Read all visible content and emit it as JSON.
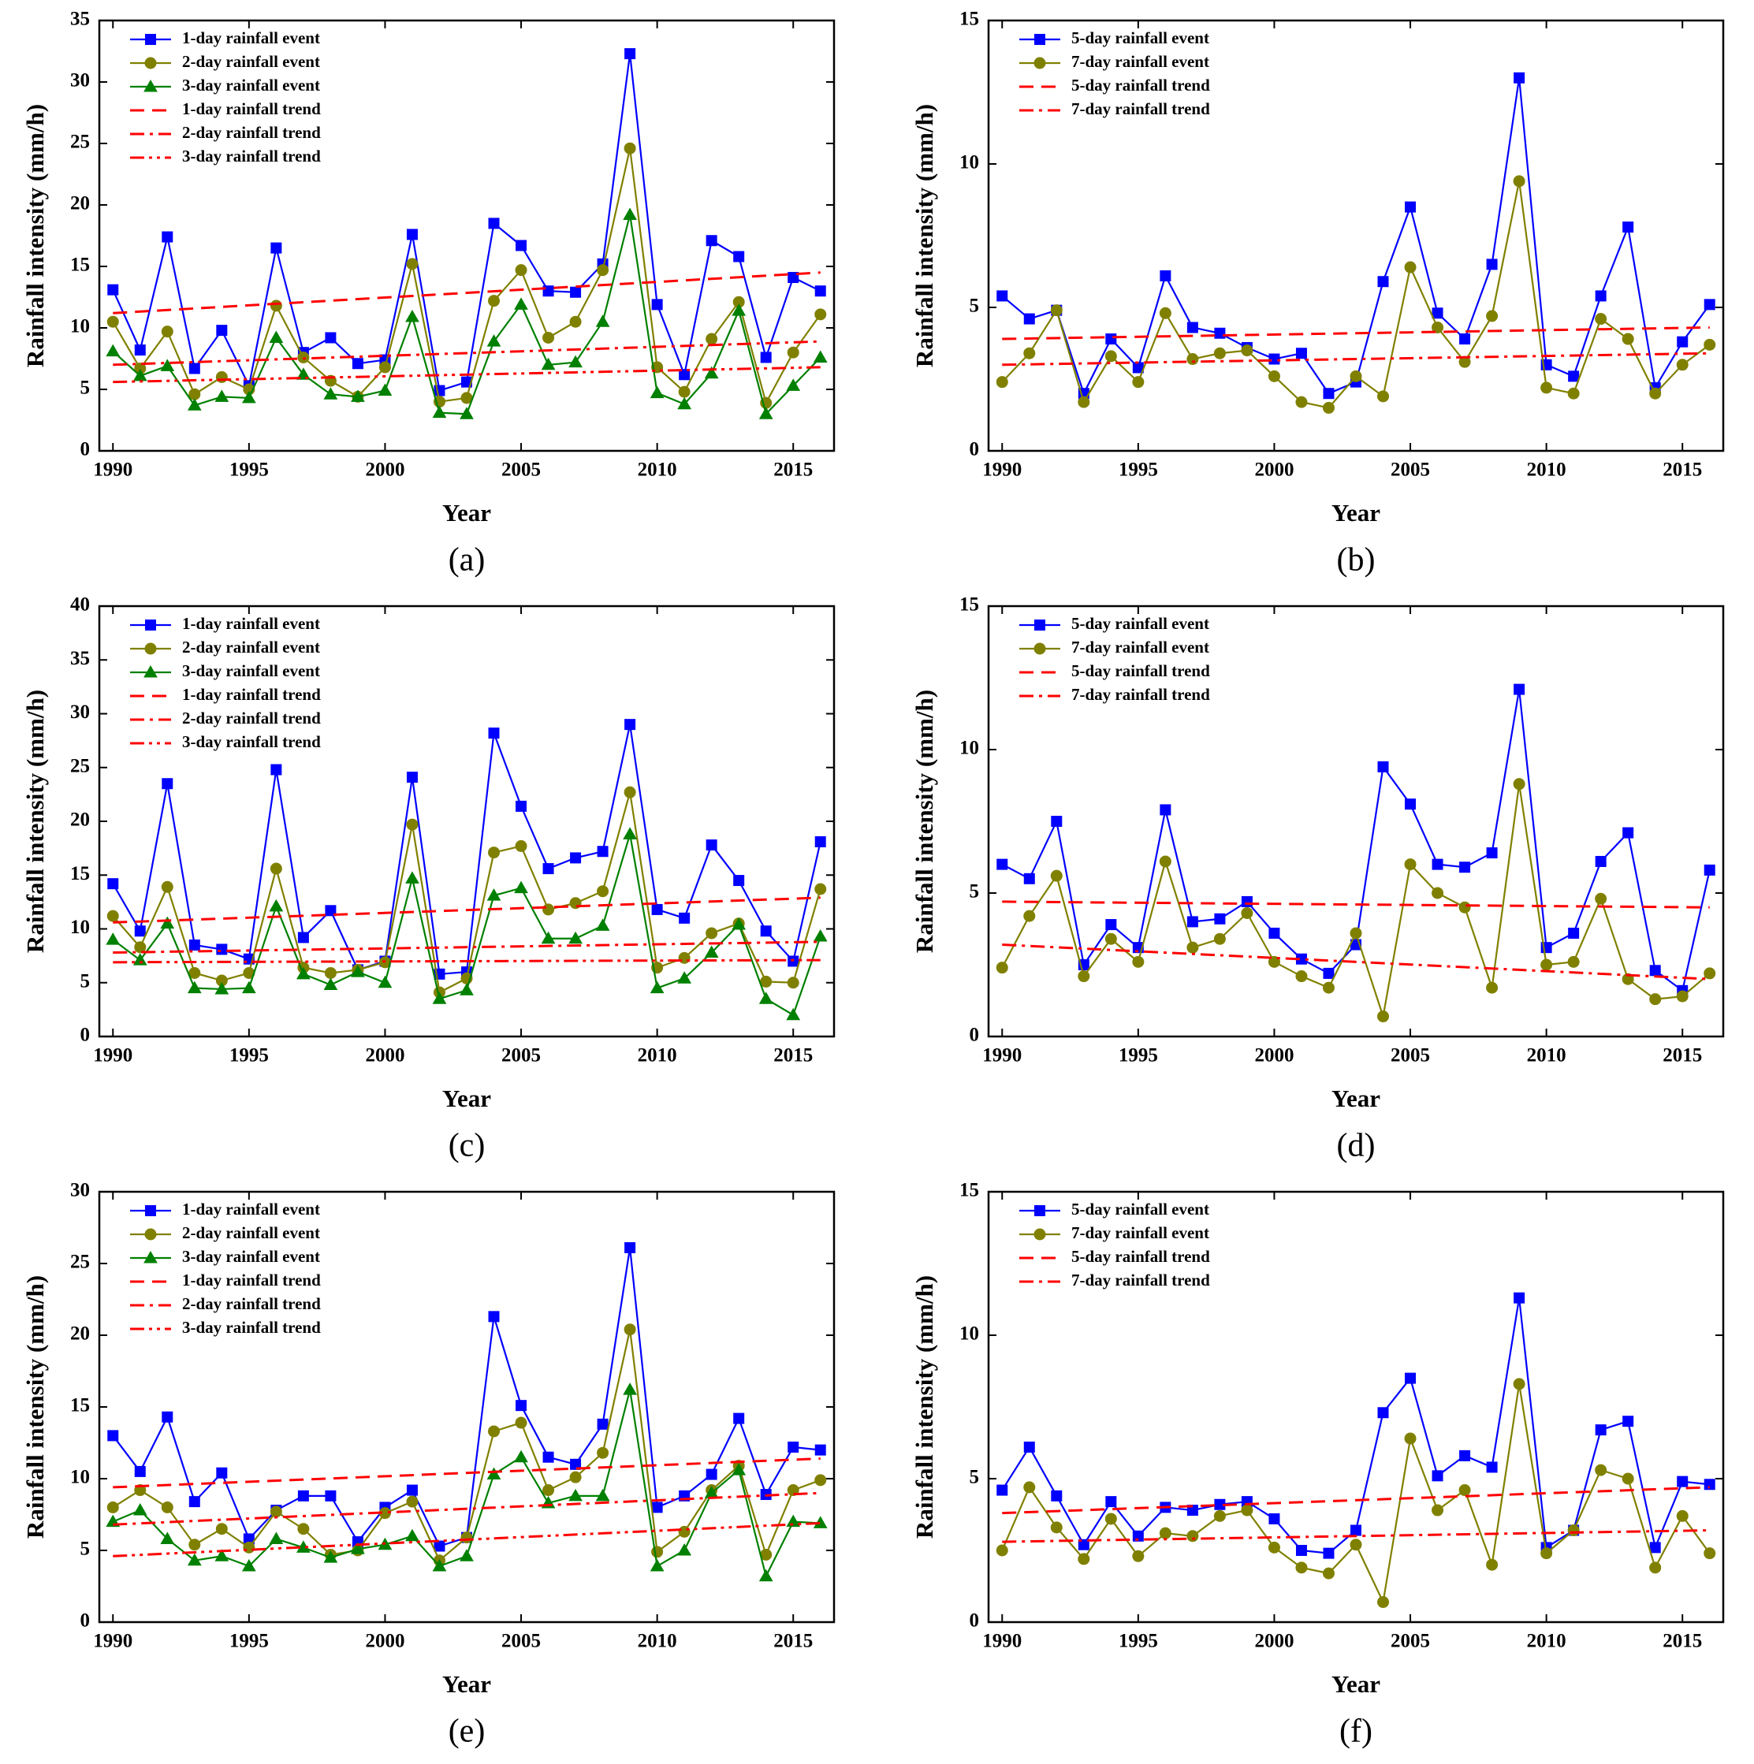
{
  "chart_data": [
    {
      "type": "line",
      "label": "(a)",
      "xlabel": "Year",
      "ylabel": "Rainfall intensity (mm/h)",
      "x": [
        1990,
        1991,
        1992,
        1993,
        1994,
        1995,
        1996,
        1997,
        1998,
        1999,
        2000,
        2001,
        2002,
        2003,
        2004,
        2005,
        2006,
        2007,
        2008,
        2009,
        2010,
        2011,
        2012,
        2013,
        2014,
        2015,
        2016
      ],
      "xlim": [
        1989.5,
        2016.5
      ],
      "xticks": [
        1990,
        1995,
        2000,
        2005,
        2010,
        2015
      ],
      "ylim": [
        0,
        35
      ],
      "yticks": [
        0,
        5,
        10,
        15,
        20,
        25,
        30,
        35
      ],
      "series": [
        {
          "name": "1-day rainfall event",
          "color": "#0000ff",
          "marker": "square",
          "values": [
            13.1,
            8.2,
            17.4,
            6.7,
            9.8,
            5.3,
            16.5,
            8.0,
            9.2,
            7.1,
            7.4,
            17.6,
            4.9,
            5.6,
            18.5,
            16.7,
            13.0,
            12.9,
            15.2,
            32.3,
            11.9,
            6.2,
            17.1,
            15.8,
            7.6,
            14.1,
            13.0
          ]
        },
        {
          "name": "2-day rainfall event",
          "color": "#808000",
          "marker": "circle",
          "values": [
            10.5,
            6.7,
            9.7,
            4.6,
            6.0,
            5.0,
            11.8,
            7.6,
            5.7,
            4.4,
            6.8,
            15.2,
            4.0,
            4.3,
            12.2,
            14.7,
            9.2,
            10.5,
            14.7,
            24.6,
            6.8,
            4.8,
            9.1,
            12.1,
            3.9,
            8.0,
            11.1
          ]
        },
        {
          "name": "3-day rainfall event",
          "color": "#008000",
          "marker": "triangle",
          "values": [
            8.1,
            6.1,
            6.9,
            3.7,
            4.4,
            4.3,
            9.2,
            6.2,
            4.6,
            4.4,
            4.9,
            10.9,
            3.1,
            3.0,
            8.9,
            11.9,
            7.0,
            7.2,
            10.5,
            19.2,
            4.7,
            3.8,
            6.3,
            11.4,
            3.0,
            5.3,
            7.6
          ]
        },
        {
          "name": "1-day rainfall trend",
          "color": "#ff0000",
          "dash": "dash",
          "x": [
            1990,
            2016
          ],
          "values": [
            11.2,
            14.5
          ]
        },
        {
          "name": "2-day rainfall trend",
          "color": "#ff0000",
          "dash": "dashdot",
          "x": [
            1990,
            2016
          ],
          "values": [
            7.0,
            8.9
          ]
        },
        {
          "name": "3-day rainfall trend",
          "color": "#ff0000",
          "dash": "dashdotdot",
          "x": [
            1990,
            2016
          ],
          "values": [
            5.6,
            6.8
          ]
        }
      ]
    },
    {
      "type": "line",
      "label": "(b)",
      "xlabel": "Year",
      "ylabel": "Rainfall intensity (mm/h)",
      "x": [
        1990,
        1991,
        1992,
        1993,
        1994,
        1995,
        1996,
        1997,
        1998,
        1999,
        2000,
        2001,
        2002,
        2003,
        2004,
        2005,
        2006,
        2007,
        2008,
        2009,
        2010,
        2011,
        2012,
        2013,
        2014,
        2015,
        2016
      ],
      "xlim": [
        1989.5,
        2016.5
      ],
      "xticks": [
        1990,
        1995,
        2000,
        2005,
        2010,
        2015
      ],
      "ylim": [
        0,
        15
      ],
      "yticks": [
        0,
        5,
        10,
        15
      ],
      "series": [
        {
          "name": "5-day rainfall event",
          "color": "#0000ff",
          "marker": "square",
          "values": [
            5.4,
            4.6,
            4.9,
            2.0,
            3.9,
            2.9,
            6.1,
            4.3,
            4.1,
            3.6,
            3.2,
            3.4,
            2.0,
            2.4,
            5.9,
            8.5,
            4.8,
            3.9,
            6.5,
            13.0,
            3.0,
            2.6,
            5.4,
            7.8,
            2.2,
            3.8,
            5.1
          ]
        },
        {
          "name": "7-day rainfall event",
          "color": "#808000",
          "marker": "circle",
          "values": [
            2.4,
            3.4,
            4.9,
            1.7,
            3.3,
            2.4,
            4.8,
            3.2,
            3.4,
            3.5,
            2.6,
            1.7,
            1.5,
            2.6,
            1.9,
            6.4,
            4.3,
            3.1,
            4.7,
            9.4,
            2.2,
            2.0,
            4.6,
            3.9,
            2.0,
            3.0,
            3.7
          ]
        },
        {
          "name": "5-day rainfall trend",
          "color": "#ff0000",
          "dash": "dash",
          "x": [
            1990,
            2016
          ],
          "values": [
            3.9,
            4.3
          ]
        },
        {
          "name": "7-day rainfall trend",
          "color": "#ff0000",
          "dash": "dashdot",
          "x": [
            1990,
            2016
          ],
          "values": [
            3.0,
            3.4
          ]
        }
      ]
    },
    {
      "type": "line",
      "label": "(c)",
      "xlabel": "Year",
      "ylabel": "Rainfall intensity (mm/h)",
      "x": [
        1990,
        1991,
        1992,
        1993,
        1994,
        1995,
        1996,
        1997,
        1998,
        1999,
        2000,
        2001,
        2002,
        2003,
        2004,
        2005,
        2006,
        2007,
        2008,
        2009,
        2010,
        2011,
        2012,
        2013,
        2014,
        2015,
        2016
      ],
      "xlim": [
        1989.5,
        2016.5
      ],
      "xticks": [
        1990,
        1995,
        2000,
        2005,
        2010,
        2015
      ],
      "ylim": [
        0,
        40
      ],
      "yticks": [
        0,
        5,
        10,
        15,
        20,
        25,
        30,
        35,
        40
      ],
      "series": [
        {
          "name": "1-day rainfall event",
          "color": "#0000ff",
          "marker": "square",
          "values": [
            14.2,
            9.8,
            23.5,
            8.5,
            8.1,
            7.2,
            24.8,
            9.2,
            11.7,
            6.2,
            7.0,
            24.1,
            5.8,
            6.0,
            28.2,
            21.4,
            15.6,
            16.6,
            17.2,
            29.0,
            11.8,
            11.0,
            17.8,
            14.5,
            9.8,
            7.0,
            18.1
          ]
        },
        {
          "name": "2-day rainfall event",
          "color": "#808000",
          "marker": "circle",
          "values": [
            11.2,
            8.3,
            13.9,
            5.9,
            5.2,
            5.9,
            15.6,
            6.4,
            5.9,
            6.2,
            6.9,
            19.7,
            4.1,
            5.4,
            17.1,
            17.7,
            11.8,
            12.4,
            13.5,
            22.7,
            6.4,
            7.3,
            9.6,
            10.5,
            5.1,
            5.0,
            13.7
          ]
        },
        {
          "name": "3-day rainfall event",
          "color": "#008000",
          "marker": "triangle",
          "values": [
            9.0,
            7.1,
            10.5,
            4.5,
            4.4,
            4.5,
            12.1,
            5.8,
            4.8,
            6.0,
            5.0,
            14.7,
            3.5,
            4.3,
            13.1,
            13.8,
            9.1,
            9.1,
            10.3,
            18.8,
            4.5,
            5.4,
            7.8,
            10.4,
            3.5,
            2.0,
            9.3
          ]
        },
        {
          "name": "1-day rainfall trend",
          "color": "#ff0000",
          "dash": "dash",
          "x": [
            1990,
            2016
          ],
          "values": [
            10.6,
            12.9
          ]
        },
        {
          "name": "2-day rainfall trend",
          "color": "#ff0000",
          "dash": "dashdot",
          "x": [
            1990,
            2016
          ],
          "values": [
            7.8,
            8.8
          ]
        },
        {
          "name": "3-day rainfall trend",
          "color": "#ff0000",
          "dash": "dashdotdot",
          "x": [
            1990,
            2016
          ],
          "values": [
            6.9,
            7.1
          ]
        }
      ]
    },
    {
      "type": "line",
      "label": "(d)",
      "xlabel": "Year",
      "ylabel": "Rainfall intensity (mm/h)",
      "x": [
        1990,
        1991,
        1992,
        1993,
        1994,
        1995,
        1996,
        1997,
        1998,
        1999,
        2000,
        2001,
        2002,
        2003,
        2004,
        2005,
        2006,
        2007,
        2008,
        2009,
        2010,
        2011,
        2012,
        2013,
        2014,
        2015,
        2016
      ],
      "xlim": [
        1989.5,
        2016.5
      ],
      "xticks": [
        1990,
        1995,
        2000,
        2005,
        2010,
        2015
      ],
      "ylim": [
        0,
        15
      ],
      "yticks": [
        0,
        5,
        10,
        15
      ],
      "series": [
        {
          "name": "5-day rainfall event",
          "color": "#0000ff",
          "marker": "square",
          "values": [
            6.0,
            5.5,
            7.5,
            2.5,
            3.9,
            3.1,
            7.9,
            4.0,
            4.1,
            4.7,
            3.6,
            2.7,
            2.2,
            3.2,
            9.4,
            8.1,
            6.0,
            5.9,
            6.4,
            12.1,
            3.1,
            3.6,
            6.1,
            7.1,
            2.3,
            1.6,
            5.8
          ]
        },
        {
          "name": "7-day rainfall event",
          "color": "#808000",
          "marker": "circle",
          "values": [
            2.4,
            4.2,
            5.6,
            2.1,
            3.4,
            2.6,
            6.1,
            3.1,
            3.4,
            4.3,
            2.6,
            2.1,
            1.7,
            3.6,
            0.7,
            6.0,
            5.0,
            4.5,
            1.7,
            8.8,
            2.5,
            2.6,
            4.8,
            2.0,
            1.3,
            1.4,
            2.2
          ]
        },
        {
          "name": "5-day rainfall trend",
          "color": "#ff0000",
          "dash": "dash",
          "x": [
            1990,
            2016
          ],
          "values": [
            4.7,
            4.5
          ]
        },
        {
          "name": "7-day rainfall trend",
          "color": "#ff0000",
          "dash": "dashdot",
          "x": [
            1990,
            2016
          ],
          "values": [
            3.2,
            2.0
          ]
        }
      ]
    },
    {
      "type": "line",
      "label": "(e)",
      "xlabel": "Year",
      "ylabel": "Rainfall intensity (mm/h)",
      "x": [
        1990,
        1991,
        1992,
        1993,
        1994,
        1995,
        1996,
        1997,
        1998,
        1999,
        2000,
        2001,
        2002,
        2003,
        2004,
        2005,
        2006,
        2007,
        2008,
        2009,
        2010,
        2011,
        2012,
        2013,
        2014,
        2015,
        2016
      ],
      "xlim": [
        1989.5,
        2016.5
      ],
      "xticks": [
        1990,
        1995,
        2000,
        2005,
        2010,
        2015
      ],
      "ylim": [
        0,
        30
      ],
      "yticks": [
        0,
        5,
        10,
        15,
        20,
        25,
        30
      ],
      "series": [
        {
          "name": "1-day rainfall event",
          "color": "#0000ff",
          "marker": "square",
          "values": [
            13.0,
            10.5,
            14.3,
            8.4,
            10.4,
            5.8,
            7.8,
            8.8,
            8.8,
            5.6,
            8.0,
            9.2,
            5.3,
            5.9,
            21.3,
            15.1,
            11.5,
            11.0,
            13.8,
            26.1,
            8.0,
            8.8,
            10.3,
            14.2,
            8.9,
            12.2,
            12.0
          ]
        },
        {
          "name": "2-day rainfall event",
          "color": "#808000",
          "marker": "circle",
          "values": [
            8.0,
            9.2,
            8.0,
            5.4,
            6.5,
            5.2,
            7.7,
            6.5,
            4.7,
            5.0,
            7.6,
            8.4,
            4.3,
            5.9,
            13.3,
            13.9,
            9.2,
            10.1,
            11.8,
            20.4,
            4.9,
            6.3,
            9.2,
            10.9,
            4.7,
            9.2,
            9.9
          ]
        },
        {
          "name": "3-day rainfall event",
          "color": "#008000",
          "marker": "triangle",
          "values": [
            7.0,
            7.8,
            5.8,
            4.3,
            4.6,
            3.9,
            5.8,
            5.2,
            4.5,
            5.1,
            5.4,
            6.0,
            3.9,
            4.6,
            10.3,
            11.5,
            8.3,
            8.8,
            8.8,
            16.2,
            3.9,
            5.0,
            9.0,
            10.6,
            3.2,
            7.0,
            6.9
          ]
        },
        {
          "name": "1-day rainfall trend",
          "color": "#ff0000",
          "dash": "dash",
          "x": [
            1990,
            2016
          ],
          "values": [
            9.4,
            11.4
          ]
        },
        {
          "name": "2-day rainfall trend",
          "color": "#ff0000",
          "dash": "dashdot",
          "x": [
            1990,
            2016
          ],
          "values": [
            6.8,
            9.0
          ]
        },
        {
          "name": "3-day rainfall trend",
          "color": "#ff0000",
          "dash": "dashdotdot",
          "x": [
            1990,
            2016
          ],
          "values": [
            4.6,
            6.9
          ]
        }
      ]
    },
    {
      "type": "line",
      "label": "(f)",
      "xlabel": "Year",
      "ylabel": "Rainfall intensity (mm/h)",
      "x": [
        1990,
        1991,
        1992,
        1993,
        1994,
        1995,
        1996,
        1997,
        1998,
        1999,
        2000,
        2001,
        2002,
        2003,
        2004,
        2005,
        2006,
        2007,
        2008,
        2009,
        2010,
        2011,
        2012,
        2013,
        2014,
        2015,
        2016
      ],
      "xlim": [
        1989.5,
        2016.5
      ],
      "xticks": [
        1990,
        1995,
        2000,
        2005,
        2010,
        2015
      ],
      "ylim": [
        0,
        15
      ],
      "yticks": [
        0,
        5,
        10,
        15
      ],
      "series": [
        {
          "name": "5-day rainfall event",
          "color": "#0000ff",
          "marker": "square",
          "values": [
            4.6,
            6.1,
            4.4,
            2.7,
            4.2,
            3.0,
            4.0,
            3.9,
            4.1,
            4.2,
            3.6,
            2.5,
            2.4,
            3.2,
            7.3,
            8.5,
            5.1,
            5.8,
            5.4,
            11.3,
            2.6,
            3.2,
            6.7,
            7.0,
            2.6,
            4.9,
            4.8
          ]
        },
        {
          "name": "7-day rainfall event",
          "color": "#808000",
          "marker": "circle",
          "values": [
            2.5,
            4.7,
            3.3,
            2.2,
            3.6,
            2.3,
            3.1,
            3.0,
            3.7,
            3.9,
            2.6,
            1.9,
            1.7,
            2.7,
            0.7,
            6.4,
            3.9,
            4.6,
            2.0,
            8.3,
            2.4,
            3.2,
            5.3,
            5.0,
            1.9,
            3.7,
            2.4
          ]
        },
        {
          "name": "5-day rainfall trend",
          "color": "#ff0000",
          "dash": "dash",
          "x": [
            1990,
            2016
          ],
          "values": [
            3.8,
            4.7
          ]
        },
        {
          "name": "7-day rainfall trend",
          "color": "#ff0000",
          "dash": "dashdot",
          "x": [
            1990,
            2016
          ],
          "values": [
            2.8,
            3.2
          ]
        }
      ]
    }
  ]
}
